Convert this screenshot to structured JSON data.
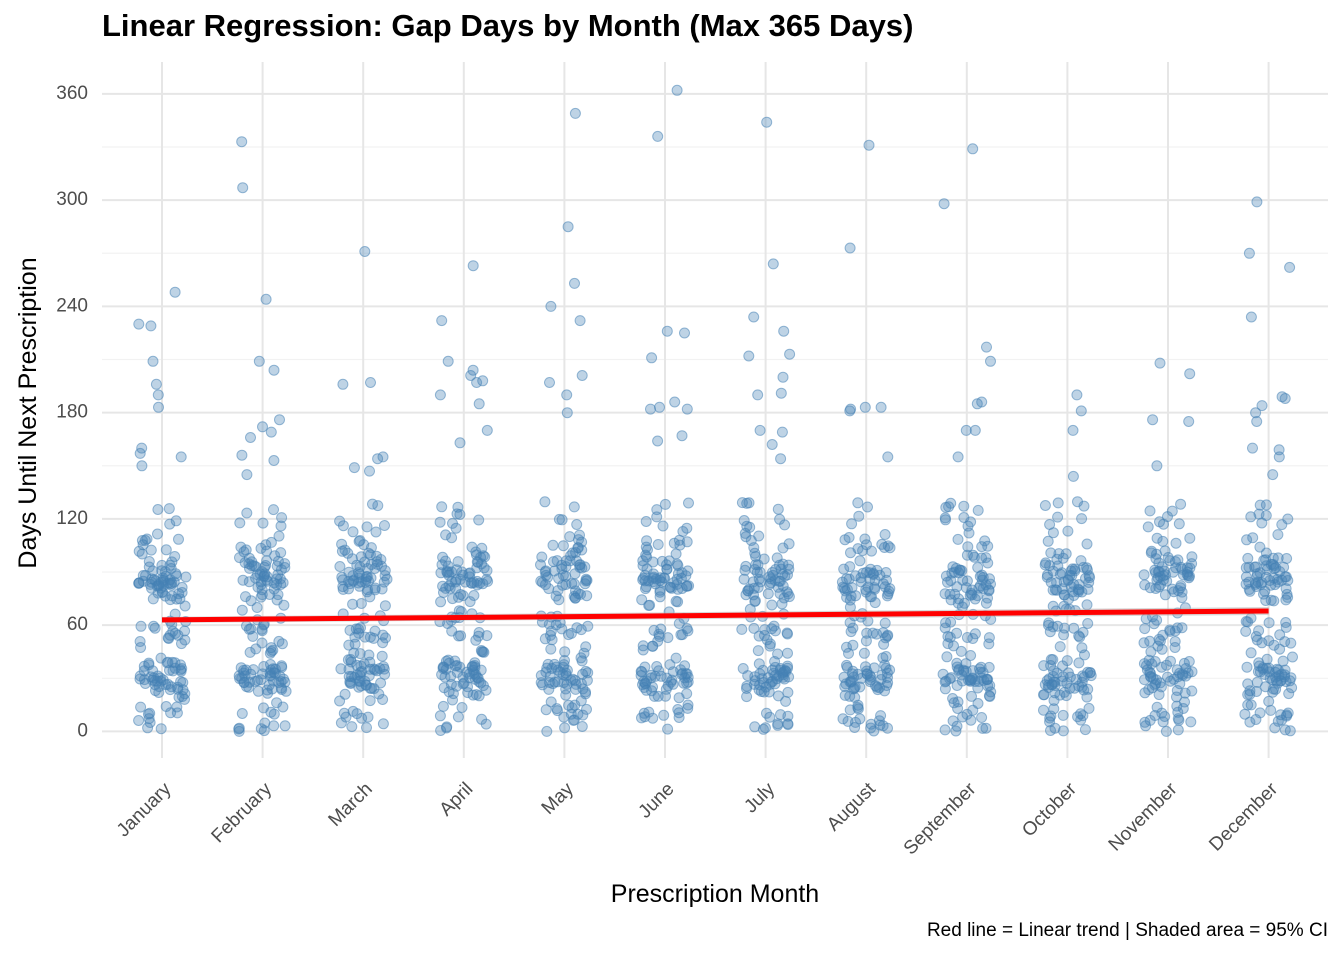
{
  "chart_data": {
    "type": "scatter",
    "title": "Linear Regression: Gap Days by Month (Max 365 Days)",
    "xlabel": "Prescription Month",
    "ylabel": "Days Until Next Prescription",
    "caption": "Red line = Linear trend | Shaded area = 95% CI",
    "categories": [
      "January",
      "February",
      "March",
      "April",
      "May",
      "June",
      "July",
      "August",
      "September",
      "October",
      "November",
      "December"
    ],
    "ylim": [
      -15,
      378
    ],
    "yticks": [
      0,
      60,
      120,
      180,
      240,
      300,
      360
    ],
    "point_color": "#4682b4",
    "trend_color": "#ff0000",
    "trend": {
      "start": 63,
      "end": 68
    },
    "outliers": [
      [
        248,
        230,
        229,
        209,
        196,
        190,
        183,
        160,
        157,
        155,
        150
      ],
      [
        333,
        307,
        244,
        209,
        204,
        176,
        172,
        169,
        166,
        156,
        153,
        145
      ],
      [
        271,
        197,
        196,
        155,
        154,
        149,
        147
      ],
      [
        263,
        232,
        209,
        204,
        201,
        198,
        197,
        190,
        185,
        170,
        163
      ],
      [
        349,
        285,
        253,
        240,
        232,
        201,
        197,
        190,
        180
      ],
      [
        362,
        336,
        226,
        225,
        211,
        186,
        183,
        182,
        182,
        167,
        164
      ],
      [
        344,
        264,
        234,
        226,
        213,
        212,
        200,
        191,
        190,
        170,
        169,
        162,
        154
      ],
      [
        331,
        273,
        183,
        183,
        182,
        181,
        155
      ],
      [
        329,
        298,
        217,
        209,
        186,
        185,
        170,
        170,
        155
      ],
      [
        190,
        181,
        170,
        144
      ],
      [
        208,
        202,
        176,
        175,
        150
      ],
      [
        299,
        270,
        262,
        234,
        189,
        188,
        184,
        180,
        175,
        160,
        159,
        155,
        145
      ]
    ]
  }
}
